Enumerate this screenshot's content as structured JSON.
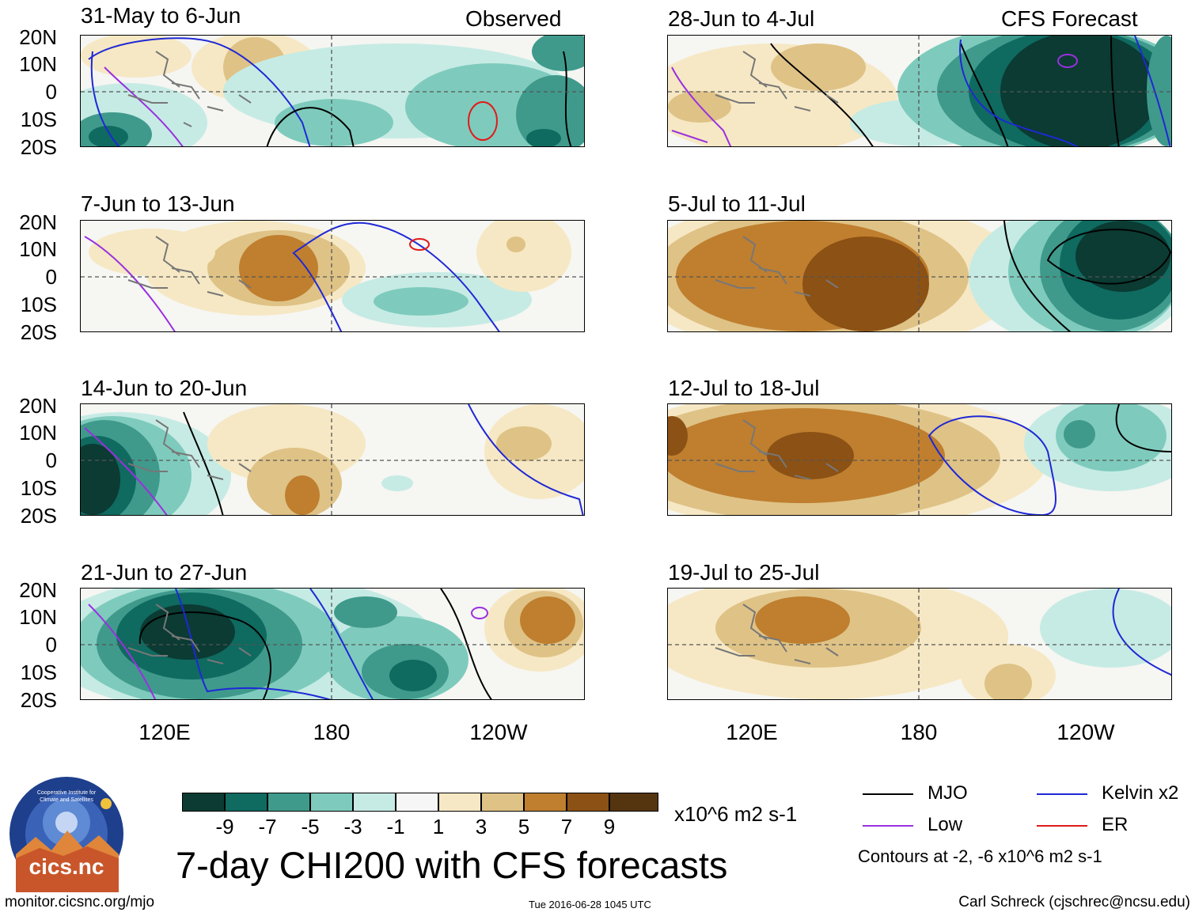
{
  "panels": {
    "left": [
      {
        "title": "31-May to 6-Jun",
        "tag": "Observed"
      },
      {
        "title": "7-Jun to 13-Jun",
        "tag": ""
      },
      {
        "title": "14-Jun to 20-Jun",
        "tag": ""
      },
      {
        "title": "21-Jun to 27-Jun",
        "tag": ""
      }
    ],
    "right": [
      {
        "title": "28-Jun to 4-Jul",
        "tag": "CFS Forecast"
      },
      {
        "title": "5-Jul to 11-Jul",
        "tag": ""
      },
      {
        "title": "12-Jul to 18-Jul",
        "tag": ""
      },
      {
        "title": "19-Jul to 25-Jul",
        "tag": ""
      }
    ]
  },
  "axes": {
    "lat_labels": [
      "20N",
      "10N",
      "0",
      "10S",
      "20S"
    ],
    "lon_labels": [
      "120E",
      "180",
      "120W"
    ]
  },
  "colorbar": {
    "colors": [
      "#0b3b33",
      "#0f6a60",
      "#3f9a8c",
      "#7ecbbd",
      "#c6ebe4",
      "#f6f6f6",
      "#f6e8c4",
      "#dfc286",
      "#bf7f2f",
      "#8c5114",
      "#553510"
    ],
    "labels": [
      "-9",
      "-7",
      "-5",
      "-3",
      "-1",
      "1",
      "3",
      "5",
      "7",
      "9"
    ],
    "units": "x10^6 m2 s-1"
  },
  "title": "7-day CHI200 with CFS forecasts",
  "legend": {
    "items": [
      {
        "label": "MJO",
        "color": "#000000"
      },
      {
        "label": "Kelvin x2",
        "color": "#1f28d6"
      },
      {
        "label": "Low",
        "color": "#9a30e0"
      },
      {
        "label": "ER",
        "color": "#e01a1a"
      }
    ],
    "note": "Contours at -2, -6 x10^6 m2 s-1"
  },
  "logo": {
    "text": "cics.nc",
    "arc_text": "Cooperative Institute for Climate and Satellites"
  },
  "footer": {
    "left": "monitor.cicsnc.org/mjo",
    "center": "Tue 2016-06-28 1045 UTC",
    "right": "Carl Schreck (cjschrec@ncsu.edu)"
  }
}
